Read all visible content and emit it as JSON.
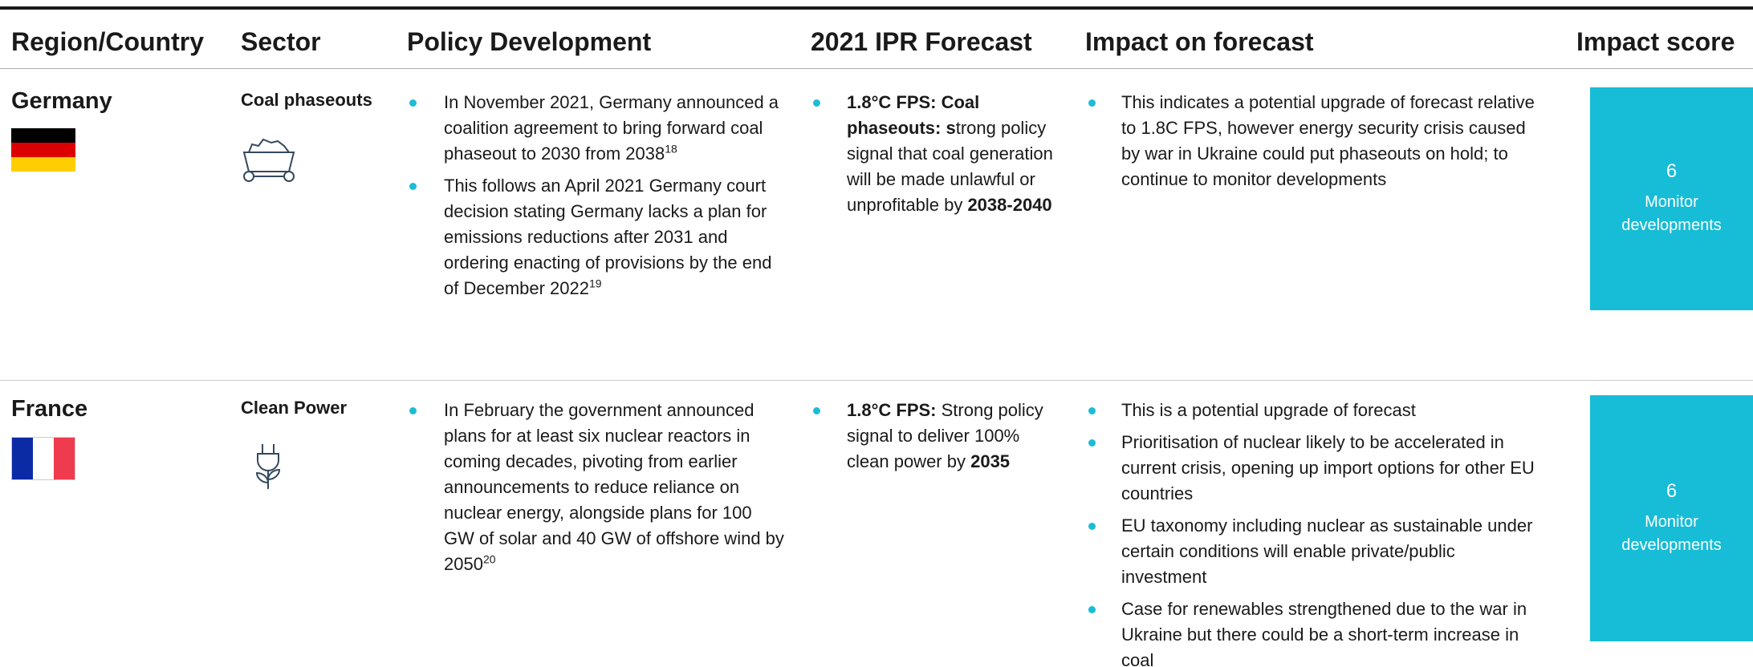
{
  "header": {
    "columns": [
      "Region/Country",
      "Sector",
      "Policy Development",
      "2021 IPR Forecast",
      "Impact on forecast",
      "Impact score"
    ]
  },
  "rows": [
    {
      "country": "Germany",
      "sector": "Coal phaseouts",
      "policy": [
        [
          "In November 2021, Germany announced a coalition agreement to bring forward coal phaseout to 2030 from 2038",
          {
            "text": "18",
            "sup": true
          }
        ],
        [
          "This follows an April 2021 Germany court decision stating Germany lacks a plan for emissions reductions after 2031 and ordering enacting of provisions by the end of December 2022",
          {
            "text": "19",
            "sup": true
          }
        ]
      ],
      "forecast": [
        [
          {
            "text": "1.8°C FPS: Coal phaseouts: s",
            "bold": true
          },
          "trong policy signal that coal generation will be made unlawful or unprofitable by ",
          {
            "text": "2038-2040",
            "bold": true
          }
        ]
      ],
      "impact": [
        [
          "This indicates a potential upgrade of forecast relative to 1.8C FPS, however energy security crisis caused by war in Ukraine could put phaseouts on hold; to continue to monitor developments"
        ]
      ],
      "score": 6,
      "score_label": "Monitor developments"
    },
    {
      "country": "France",
      "sector": "Clean Power",
      "policy": [
        [
          "In February the government announced plans for at least six nuclear reactors in coming decades, pivoting from earlier announcements to reduce reliance on nuclear energy, alongside plans for 100 GW of solar and 40 GW of offshore wind by 2050",
          {
            "text": "20",
            "sup": true
          }
        ]
      ],
      "forecast": [
        [
          {
            "text": "1.8°C FPS:",
            "bold": true
          },
          " Strong policy signal to deliver 100% clean power by ",
          {
            "text": "2035",
            "bold": true
          }
        ]
      ],
      "impact": [
        [
          "This is a potential upgrade of forecast"
        ],
        [
          "Prioritisation of nuclear likely to be accelerated in current crisis, opening up import options for other EU countries"
        ],
        [
          "EU taxonomy including nuclear as sustainable under certain conditions will enable private/public investment"
        ],
        [
          "Case for renewables strengthened due to the war in Ukraine but there could be a short-term increase in coal"
        ]
      ],
      "score": 6,
      "score_label": "Monitor developments"
    }
  ]
}
